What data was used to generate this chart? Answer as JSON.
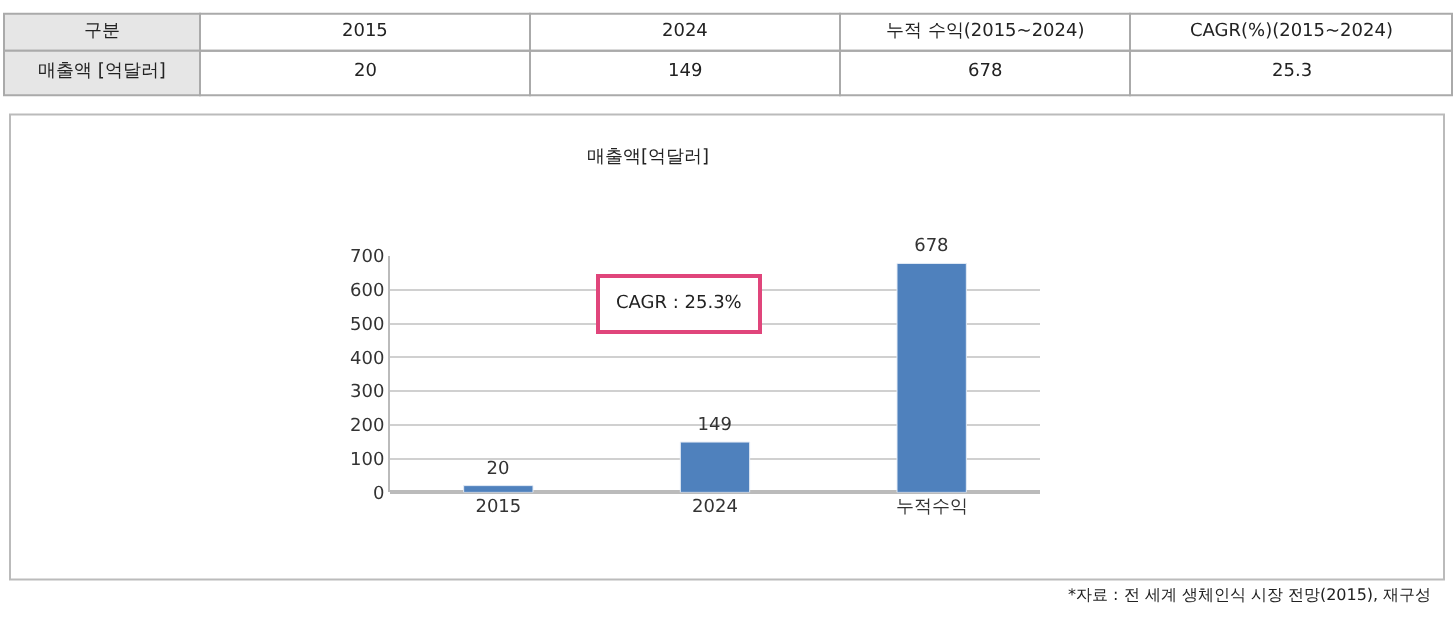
{
  "chart_data": {
    "type": "bar",
    "title": "매출액[억달러]",
    "categories": [
      "2015",
      "2024",
      "누적수익"
    ],
    "values": [
      20,
      149,
      678
    ],
    "color": "#4f81bd",
    "ylim": [
      0,
      700
    ],
    "yticks": [
      0,
      100,
      200,
      300,
      400,
      500,
      600,
      700
    ],
    "grid": "y",
    "legend": false,
    "data_labels": true,
    "annotations": [
      "구분",
      "2015",
      "2024",
      "누적 수익(2015~2024)",
      "CAGR(%)(2015~2024)",
      "매출액 [억달러]",
      "20",
      "149",
      "678",
      "25.3",
      "CAGR : 25.3%",
      "*자료 : 전 세계 생체인식 시장 전망(2015), 재구성"
    ]
  }
}
